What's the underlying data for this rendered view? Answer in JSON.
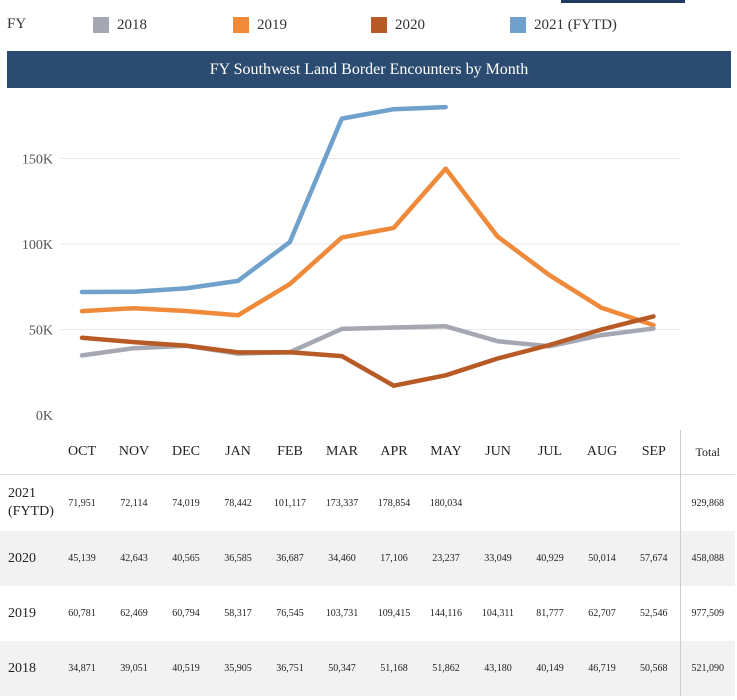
{
  "legend": {
    "label": "FY",
    "items": [
      {
        "text": "2018",
        "color": "#a5a8b2"
      },
      {
        "text": "2019",
        "color": "#ef8a3a"
      },
      {
        "text": "2020",
        "color": "#b85a25"
      },
      {
        "text": "2021 (FYTD)",
        "color": "#6fa1cc"
      }
    ]
  },
  "title": "FY Southwest Land Border Encounters by Month",
  "chart_data": {
    "type": "line",
    "title": "FY Southwest Land Border Encounters by Month",
    "categories": [
      "OCT",
      "NOV",
      "DEC",
      "JAN",
      "FEB",
      "MAR",
      "APR",
      "MAY",
      "JUN",
      "JUL",
      "AUG",
      "SEP"
    ],
    "yticks": [
      "0K",
      "50K",
      "100K",
      "150K"
    ],
    "ylim": [
      0,
      185000
    ],
    "grid": true,
    "legend_position": "top",
    "series": [
      {
        "name": "2018",
        "color": "#a5a8b2",
        "values": [
          34871,
          39051,
          40519,
          35905,
          36751,
          50347,
          51168,
          51862,
          43180,
          40149,
          46719,
          50568
        ]
      },
      {
        "name": "2019",
        "color": "#ef8a3a",
        "values": [
          60781,
          62469,
          60794,
          58317,
          76545,
          103731,
          109415,
          144116,
          104311,
          81777,
          62707,
          52546
        ]
      },
      {
        "name": "2020",
        "color": "#b85a25",
        "values": [
          45139,
          42643,
          40565,
          36585,
          36687,
          34460,
          17106,
          23237,
          33049,
          40929,
          50014,
          57674
        ]
      },
      {
        "name": "2021 (FYTD)",
        "color": "#6fa1cc",
        "values": [
          71951,
          72114,
          74019,
          78442,
          101117,
          173337,
          178854,
          180034,
          null,
          null,
          null,
          null
        ]
      }
    ]
  },
  "table": {
    "headers": [
      "OCT",
      "NOV",
      "DEC",
      "JAN",
      "FEB",
      "MAR",
      "APR",
      "MAY",
      "JUN",
      "JUL",
      "AUG",
      "SEP"
    ],
    "total_header": "Total",
    "rows": [
      {
        "label": "2021 (FYTD)",
        "cells": [
          "71,951",
          "72,114",
          "74,019",
          "78,442",
          "101,117",
          "173,337",
          "178,854",
          "180,034",
          "",
          "",
          "",
          ""
        ],
        "total": "929,868"
      },
      {
        "label": "2020",
        "cells": [
          "45,139",
          "42,643",
          "40,565",
          "36,585",
          "36,687",
          "34,460",
          "17,106",
          "23,237",
          "33,049",
          "40,929",
          "50,014",
          "57,674"
        ],
        "total": "458,088"
      },
      {
        "label": "2019",
        "cells": [
          "60,781",
          "62,469",
          "60,794",
          "58,317",
          "76,545",
          "103,731",
          "109,415",
          "144,116",
          "104,311",
          "81,777",
          "62,707",
          "52,546"
        ],
        "total": "977,509"
      },
      {
        "label": "2018",
        "cells": [
          "34,871",
          "39,051",
          "40,519",
          "35,905",
          "36,751",
          "50,347",
          "51,168",
          "51,862",
          "43,180",
          "40,149",
          "46,719",
          "50,568"
        ],
        "total": "521,090"
      }
    ]
  }
}
